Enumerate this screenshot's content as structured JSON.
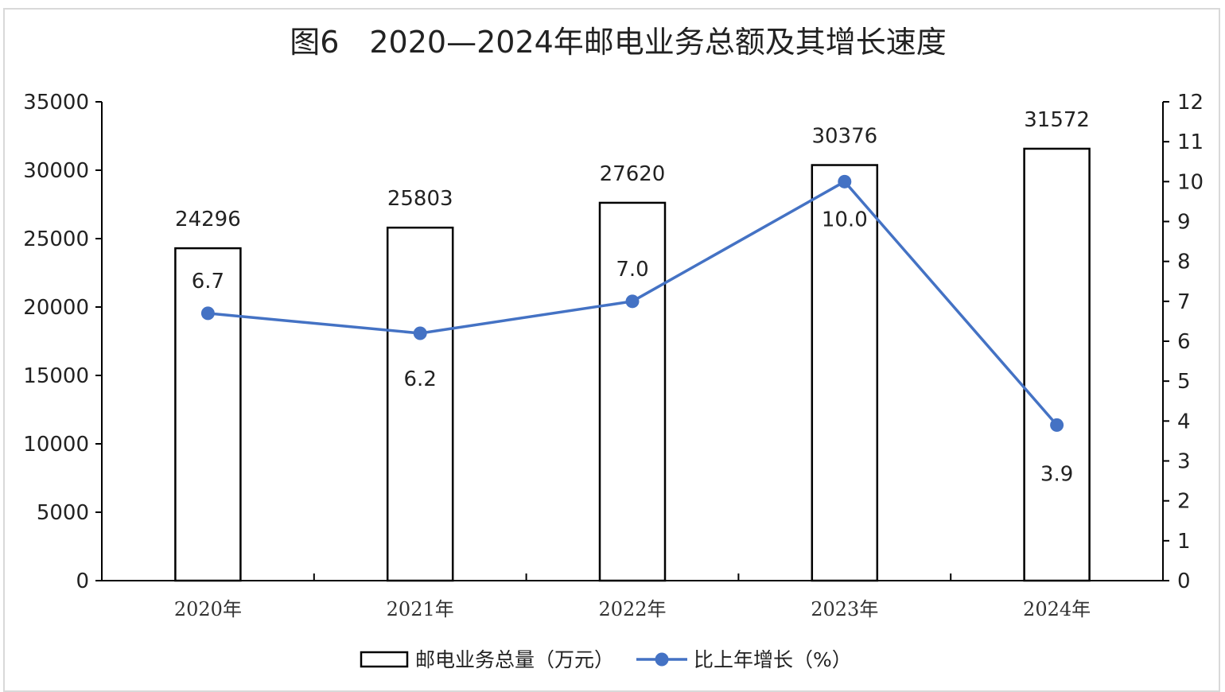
{
  "chart_data": {
    "type": "bar+line",
    "title": "图6　2020—2024年邮电业务总额及其增长速度",
    "categories": [
      "2020年",
      "2021年",
      "2022年",
      "2023年",
      "2024年"
    ],
    "series": [
      {
        "name": "邮电业务总量（万元）",
        "type": "bar",
        "axis": "left",
        "values": [
          24296,
          25803,
          27620,
          30376,
          31572
        ],
        "labels": [
          "24296",
          "25803",
          "27620",
          "30376",
          "31572"
        ]
      },
      {
        "name": "比上年增长（%）",
        "type": "line",
        "axis": "right",
        "values": [
          6.7,
          6.2,
          7.0,
          10.0,
          3.9
        ],
        "labels": [
          "6.7",
          "6.2",
          "7.0",
          "10.0",
          "3.9"
        ]
      }
    ],
    "yleft": {
      "range": [
        0,
        35000
      ],
      "ticks": [
        "0",
        "5000",
        "10000",
        "15000",
        "20000",
        "25000",
        "30000",
        "35000"
      ]
    },
    "yright": {
      "range": [
        0,
        12
      ],
      "ticks": [
        "0",
        "1",
        "2",
        "3",
        "4",
        "5",
        "6",
        "7",
        "8",
        "9",
        "10",
        "11",
        "12"
      ]
    },
    "grid": false,
    "legend": "bottom",
    "colors": {
      "bar_fill": "#ffffff",
      "bar_stroke": "#000000",
      "line": "#4472c4"
    }
  }
}
